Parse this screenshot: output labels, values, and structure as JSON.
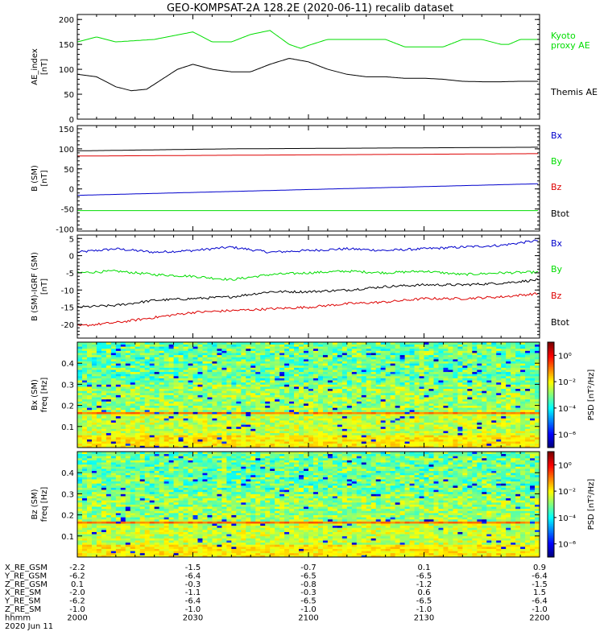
{
  "title": "GEO-KOMPSAT-2A 128.2E (2020-06-11) recalib dataset",
  "colors": {
    "black": "#000000",
    "green": "#00dd00",
    "blue": "#0000cc",
    "red": "#dd0000"
  },
  "time_axis": {
    "ticks": [
      "2000",
      "2030",
      "2100",
      "2130",
      "2200"
    ],
    "start": "2020-06-11T20:00",
    "end": "2020-06-11T22:00"
  },
  "ephemeris": {
    "rows": [
      {
        "label": "X_RE_GSM",
        "values": [
          "-2.2",
          "-1.5",
          "-0.7",
          "0.1",
          "0.9"
        ]
      },
      {
        "label": "Y_RE_GSM",
        "values": [
          "-6.2",
          "-6.4",
          "-6.5",
          "-6.5",
          "-6.4"
        ]
      },
      {
        "label": "Z_RE_GSM",
        "values": [
          "0.1",
          "-0.3",
          "-0.8",
          "-1.2",
          "-1.5"
        ]
      },
      {
        "label": "X_RE_SM",
        "values": [
          "-2.0",
          "-1.1",
          "-0.3",
          "0.6",
          "1.5"
        ]
      },
      {
        "label": "Y_RE_SM",
        "values": [
          "-6.2",
          "-6.4",
          "-6.5",
          "-6.5",
          "-6.4"
        ]
      },
      {
        "label": "Z_RE_SM",
        "values": [
          "-1.0",
          "-1.0",
          "-1.0",
          "-1.0",
          "-1.0"
        ]
      },
      {
        "label": "hhmm",
        "values": [
          "2000",
          "2030",
          "2100",
          "2130",
          "2200"
        ]
      }
    ],
    "date_label": "2020 Jun 11"
  },
  "chart_data": [
    {
      "type": "line",
      "ylabel": "AE_index\n[nT]",
      "ylim": [
        0,
        210
      ],
      "yticks": [
        "0",
        "50",
        "100",
        "150",
        "200"
      ],
      "yticks_values": [
        0,
        50,
        100,
        150,
        200
      ],
      "series": [
        {
          "name": "Kyoto proxy AE",
          "color": "#00dd00",
          "x": [
            0,
            5,
            10,
            20,
            30,
            35,
            40,
            45,
            50,
            55,
            58,
            60,
            65,
            70,
            75,
            80,
            85,
            90,
            95,
            100,
            105,
            110,
            112,
            115,
            120
          ],
          "y": [
            155,
            165,
            155,
            160,
            175,
            155,
            155,
            170,
            178,
            150,
            142,
            148,
            160,
            160,
            160,
            160,
            145,
            145,
            145,
            160,
            160,
            150,
            150,
            160,
            160
          ]
        },
        {
          "name": "Themis AE",
          "color": "#000000",
          "x": [
            0,
            5,
            10,
            14,
            18,
            22,
            26,
            30,
            35,
            40,
            45,
            50,
            55,
            60,
            65,
            70,
            75,
            80,
            85,
            90,
            95,
            100,
            105,
            110,
            115,
            120
          ],
          "y": [
            90,
            85,
            65,
            57,
            60,
            80,
            100,
            110,
            100,
            95,
            95,
            110,
            122,
            115,
            100,
            90,
            85,
            85,
            82,
            82,
            80,
            76,
            75,
            75,
            76,
            76
          ]
        }
      ]
    },
    {
      "type": "line",
      "ylabel": "B (SM)\n[nT]",
      "ylim": [
        -105,
        158
      ],
      "yticks": [
        "-100",
        "-50",
        "0",
        "50",
        "100",
        "150"
      ],
      "yticks_values": [
        -100,
        -50,
        0,
        50,
        100,
        150
      ],
      "series": [
        {
          "name": "Bx",
          "color": "#0000cc",
          "x": [
            0,
            120
          ],
          "y": [
            -16,
            13
          ]
        },
        {
          "name": "By",
          "color": "#00dd00",
          "x": [
            0,
            120
          ],
          "y": [
            -54,
            -54
          ]
        },
        {
          "name": "Bz",
          "color": "#dd0000",
          "x": [
            0,
            120
          ],
          "y": [
            82,
            88
          ]
        },
        {
          "name": "Btot",
          "color": "#000000",
          "x": [
            0,
            40,
            80,
            120
          ],
          "y": [
            95,
            100,
            102,
            104
          ]
        }
      ]
    },
    {
      "type": "line",
      "ylabel": "B (SM)-IGRF (SM)\n[nT]",
      "ylim": [
        -24,
        6
      ],
      "yticks": [
        "-20",
        "-15",
        "-10",
        "-5",
        "0",
        "5"
      ],
      "yticks_values": [
        -20,
        -15,
        -10,
        -5,
        0,
        5
      ],
      "series": [
        {
          "name": "Bx",
          "color": "#0000cc",
          "x": [
            0,
            10,
            20,
            30,
            40,
            50,
            60,
            70,
            80,
            90,
            100,
            110,
            120
          ],
          "y": [
            1.0,
            2.0,
            1.0,
            1.5,
            2.5,
            1.0,
            1.5,
            2.0,
            1.5,
            2.0,
            2.5,
            3.0,
            4.5
          ]
        },
        {
          "name": "By",
          "color": "#00dd00",
          "x": [
            0,
            10,
            20,
            30,
            40,
            50,
            60,
            70,
            80,
            90,
            100,
            110,
            120
          ],
          "y": [
            -5.0,
            -4.5,
            -5.5,
            -6.0,
            -7.0,
            -5.5,
            -5.0,
            -4.5,
            -5.0,
            -4.5,
            -5.5,
            -5.0,
            -4.8
          ]
        },
        {
          "name": "Btot",
          "color": "#000000",
          "x": [
            0,
            10,
            20,
            30,
            40,
            50,
            60,
            70,
            80,
            90,
            100,
            110,
            120
          ],
          "y": [
            -15.0,
            -14.5,
            -13.0,
            -12.5,
            -12.0,
            -10.5,
            -10.5,
            -10.0,
            -9.0,
            -8.5,
            -8.5,
            -8.0,
            -7.0
          ]
        },
        {
          "name": "Bz",
          "color": "#dd0000",
          "x": [
            0,
            10,
            20,
            30,
            40,
            50,
            60,
            70,
            80,
            90,
            100,
            110,
            120
          ],
          "y": [
            -20.5,
            -19.5,
            -18.0,
            -16.5,
            -16.0,
            -15.5,
            -15.0,
            -14.0,
            -13.5,
            -12.5,
            -12.5,
            -12.0,
            -11.0
          ]
        }
      ]
    },
    {
      "type": "heatmap",
      "ylabel": "Bx (SM)\nfreq [Hz]",
      "ylim": [
        0,
        0.5
      ],
      "yticks": [
        "0.1",
        "0.2",
        "0.3",
        "0.4"
      ],
      "yticks_values": [
        0.1,
        0.2,
        0.3,
        0.4
      ],
      "colorbar": {
        "label": "PSD [nT²/Hz]",
        "ticks": [
          "10⁰",
          "10⁻²",
          "10⁻⁴",
          "10⁻⁶"
        ],
        "tick_exponents": [
          0,
          -2,
          -4,
          -6
        ],
        "range_exponents": [
          -7,
          1
        ]
      }
    },
    {
      "type": "heatmap",
      "ylabel": "Bz (SM)\nfreq [Hz]",
      "ylim": [
        0,
        0.5
      ],
      "yticks": [
        "0.1",
        "0.2",
        "0.3",
        "0.4"
      ],
      "yticks_values": [
        0.1,
        0.2,
        0.3,
        0.4
      ],
      "colorbar": {
        "label": "PSD [nT²/Hz]",
        "ticks": [
          "10⁰",
          "10⁻²",
          "10⁻⁴",
          "10⁻⁶"
        ],
        "tick_exponents": [
          0,
          -2,
          -4,
          -6
        ],
        "range_exponents": [
          -7,
          1
        ]
      }
    }
  ],
  "legends": [
    [
      {
        "text": "Kyoto",
        "color": "#00dd00"
      },
      {
        "text": "proxy AE",
        "color": "#00dd00"
      },
      {
        "text": "Themis AE",
        "color": "#000000"
      }
    ],
    [
      {
        "text": "Bx",
        "color": "#0000cc"
      },
      {
        "text": "By",
        "color": "#00dd00"
      },
      {
        "text": "Bz",
        "color": "#dd0000"
      },
      {
        "text": "Btot",
        "color": "#000000"
      }
    ],
    [
      {
        "text": "Bx",
        "color": "#0000cc"
      },
      {
        "text": "By",
        "color": "#00dd00"
      },
      {
        "text": "Bz",
        "color": "#dd0000"
      },
      {
        "text": "Btot",
        "color": "#000000"
      }
    ]
  ]
}
